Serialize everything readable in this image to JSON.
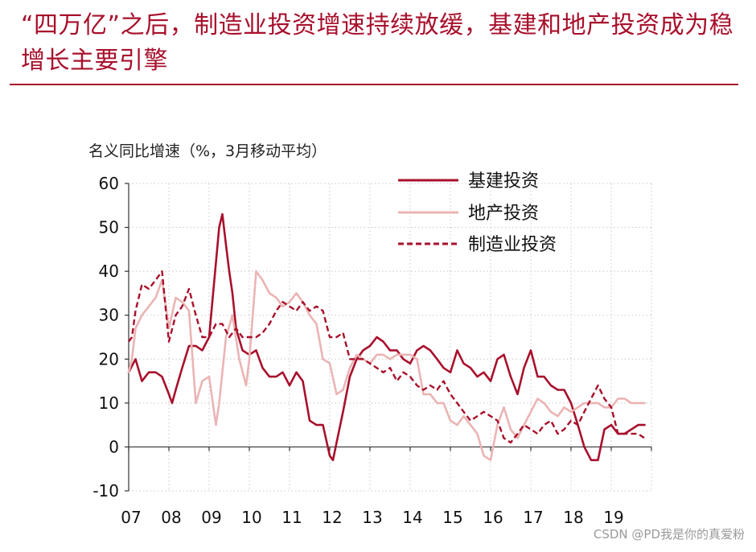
{
  "page": {
    "title": "“四万亿”之后，制造业投资增速持续放缓，基建和地产投资成为稳增长主要引擎",
    "watermark": "CSDN @PD我是你的真爱粉",
    "colors": {
      "accent": "#a8102c",
      "infra": "#a8102c",
      "realestate": "#ebb4b4",
      "manufacturing": "#a8102c"
    }
  },
  "chart_data": {
    "type": "line",
    "ylabel": "名义同比增速（%，3月移动平均）",
    "ylim": [
      -10,
      60
    ],
    "yticks": [
      -10,
      0,
      10,
      20,
      30,
      40,
      50,
      60
    ],
    "xlim": [
      2007.0,
      2020.0
    ],
    "xticks": [
      {
        "label": "07",
        "x": 2007.0
      },
      {
        "label": "08",
        "x": 2008.0
      },
      {
        "label": "09",
        "x": 2009.0
      },
      {
        "label": "10",
        "x": 2010.0
      },
      {
        "label": "11",
        "x": 2011.0
      },
      {
        "label": "12",
        "x": 2012.0
      },
      {
        "label": "13",
        "x": 2013.0
      },
      {
        "label": "14",
        "x": 2014.0
      },
      {
        "label": "15",
        "x": 2015.0
      },
      {
        "label": "16",
        "x": 2016.0
      },
      {
        "label": "17",
        "x": 2017.0
      },
      {
        "label": "18",
        "x": 2018.0
      },
      {
        "label": "19",
        "x": 2019.0
      }
    ],
    "grid": true,
    "legend_position": "top-right",
    "series": [
      {
        "name": "基建投资",
        "style": "solid",
        "color": "#a8102c",
        "x": [
          2007.0,
          2007.17,
          2007.33,
          2007.5,
          2007.67,
          2007.83,
          2008.0,
          2008.08,
          2008.17,
          2008.33,
          2008.5,
          2008.67,
          2008.83,
          2009.0,
          2009.08,
          2009.17,
          2009.25,
          2009.33,
          2009.42,
          2009.5,
          2009.58,
          2009.67,
          2009.83,
          2010.0,
          2010.17,
          2010.33,
          2010.5,
          2010.67,
          2010.83,
          2011.0,
          2011.17,
          2011.33,
          2011.5,
          2011.67,
          2011.83,
          2012.0,
          2012.08,
          2012.17,
          2012.33,
          2012.5,
          2012.67,
          2012.83,
          2013.0,
          2013.17,
          2013.33,
          2013.5,
          2013.67,
          2013.83,
          2014.0,
          2014.17,
          2014.33,
          2014.5,
          2014.67,
          2014.83,
          2015.0,
          2015.17,
          2015.33,
          2015.5,
          2015.67,
          2015.83,
          2016.0,
          2016.17,
          2016.33,
          2016.5,
          2016.67,
          2016.83,
          2017.0,
          2017.17,
          2017.33,
          2017.5,
          2017.67,
          2017.83,
          2018.0,
          2018.17,
          2018.33,
          2018.5,
          2018.67,
          2018.83,
          2019.0,
          2019.17,
          2019.33,
          2019.5,
          2019.67,
          2019.83
        ],
        "values": [
          17,
          20,
          15,
          17,
          17,
          16,
          12,
          10,
          13,
          18,
          23,
          23,
          22,
          25,
          33,
          42,
          50,
          53,
          46,
          40,
          35,
          27,
          22,
          21,
          22,
          18,
          16,
          16,
          17,
          14,
          17,
          15,
          6,
          5,
          5,
          -2,
          -3,
          1,
          8,
          16,
          20,
          22,
          23,
          25,
          24,
          22,
          22,
          20,
          19,
          22,
          23,
          22,
          20,
          18,
          17,
          22,
          19,
          18,
          16,
          17,
          15,
          20,
          21,
          16,
          12,
          18,
          22,
          16,
          16,
          14,
          13,
          13,
          10,
          5,
          0,
          -3,
          -3,
          4,
          5,
          3,
          3,
          4,
          5,
          5
        ]
      },
      {
        "name": "地产投资",
        "style": "solid",
        "color": "#ebb4b4",
        "x": [
          2007.0,
          2007.08,
          2007.17,
          2007.33,
          2007.5,
          2007.67,
          2007.83,
          2008.0,
          2008.17,
          2008.33,
          2008.5,
          2008.67,
          2008.83,
          2009.0,
          2009.17,
          2009.25,
          2009.42,
          2009.58,
          2009.75,
          2009.92,
          2010.0,
          2010.17,
          2010.33,
          2010.5,
          2010.67,
          2010.83,
          2011.0,
          2011.17,
          2011.33,
          2011.5,
          2011.67,
          2011.83,
          2012.0,
          2012.17,
          2012.33,
          2012.5,
          2012.67,
          2012.83,
          2013.0,
          2013.17,
          2013.33,
          2013.5,
          2013.67,
          2013.83,
          2014.0,
          2014.17,
          2014.33,
          2014.5,
          2014.67,
          2014.83,
          2015.0,
          2015.17,
          2015.33,
          2015.5,
          2015.67,
          2015.83,
          2016.0,
          2016.17,
          2016.33,
          2016.5,
          2016.67,
          2016.83,
          2017.0,
          2017.17,
          2017.33,
          2017.5,
          2017.67,
          2017.83,
          2018.0,
          2018.17,
          2018.33,
          2018.5,
          2018.67,
          2018.83,
          2019.0,
          2019.17,
          2019.33,
          2019.5,
          2019.67,
          2019.83
        ],
        "values": [
          17,
          20,
          27,
          30,
          32,
          34,
          38,
          27,
          34,
          33,
          31,
          10,
          15,
          16,
          5,
          10,
          25,
          30,
          20,
          14,
          20,
          40,
          38,
          35,
          34,
          32,
          33,
          35,
          33,
          30,
          28,
          20,
          19,
          12,
          13,
          18,
          21,
          20,
          19,
          21,
          21,
          20,
          21,
          21,
          21,
          20,
          12,
          12,
          10,
          10,
          6,
          5,
          7,
          5,
          3,
          -2,
          -3,
          5,
          9,
          4,
          2,
          5,
          8,
          11,
          10,
          8,
          7,
          9,
          8,
          9,
          10,
          10,
          10,
          9,
          9,
          11,
          11,
          10,
          10,
          10
        ]
      },
      {
        "name": "制造业投资",
        "style": "dashed",
        "color": "#a8102c",
        "x": [
          2007.0,
          2007.08,
          2007.17,
          2007.33,
          2007.5,
          2007.67,
          2007.83,
          2008.0,
          2008.17,
          2008.33,
          2008.5,
          2008.67,
          2008.83,
          2009.0,
          2009.17,
          2009.33,
          2009.5,
          2009.67,
          2009.83,
          2010.0,
          2010.17,
          2010.33,
          2010.5,
          2010.67,
          2010.83,
          2011.0,
          2011.17,
          2011.33,
          2011.5,
          2011.67,
          2011.83,
          2012.0,
          2012.17,
          2012.33,
          2012.5,
          2012.67,
          2012.83,
          2013.0,
          2013.17,
          2013.33,
          2013.5,
          2013.67,
          2013.83,
          2014.0,
          2014.17,
          2014.33,
          2014.5,
          2014.67,
          2014.83,
          2015.0,
          2015.17,
          2015.33,
          2015.5,
          2015.67,
          2015.83,
          2016.0,
          2016.17,
          2016.33,
          2016.5,
          2016.67,
          2016.83,
          2017.0,
          2017.17,
          2017.33,
          2017.5,
          2017.67,
          2017.83,
          2018.0,
          2018.17,
          2018.33,
          2018.5,
          2018.67,
          2018.83,
          2019.0,
          2019.17,
          2019.33,
          2019.5,
          2019.67,
          2019.83
        ],
        "values": [
          24,
          25,
          31,
          37,
          36,
          38,
          40,
          24,
          30,
          32,
          36,
          30,
          25,
          25,
          28,
          28,
          25,
          27,
          25,
          25,
          25,
          26,
          28,
          31,
          33,
          32,
          31,
          33,
          31,
          32,
          31,
          25,
          25,
          26,
          20,
          20,
          20,
          19,
          18,
          17,
          18,
          15,
          17,
          16,
          14,
          13,
          14,
          13,
          15,
          12,
          10,
          8,
          6,
          7,
          8,
          7,
          6,
          2,
          1,
          3,
          5,
          4,
          3,
          5,
          6,
          3,
          4,
          6,
          5,
          8,
          11,
          14,
          11,
          9,
          3,
          3,
          3,
          3,
          2
        ]
      }
    ]
  }
}
